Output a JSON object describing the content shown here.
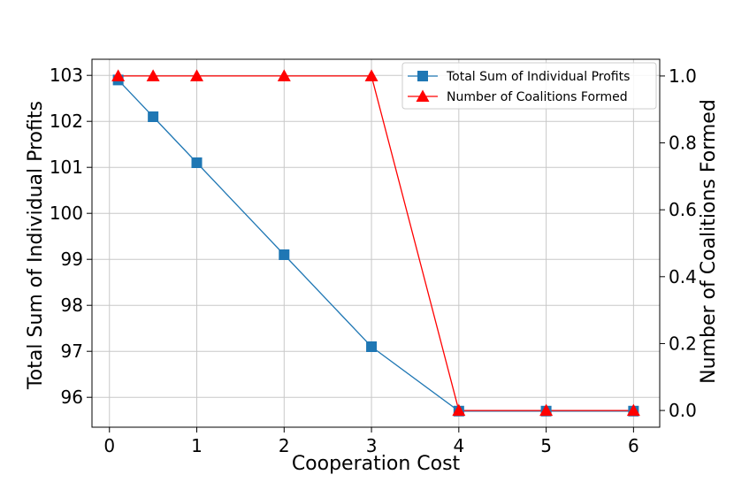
{
  "chart_data": {
    "type": "line",
    "xlabel": "Cooperation Cost",
    "ylabel_left": "Total Sum of Individual Profits",
    "ylabel_right": "Number of Coalitions Formed",
    "xlim": [
      -0.2,
      6.3
    ],
    "ylim_left": [
      95.35,
      103.35
    ],
    "ylim_right": [
      -0.05,
      1.05
    ],
    "xticks": [
      0,
      1,
      2,
      3,
      4,
      5,
      6
    ],
    "yticks_left": [
      96,
      97,
      98,
      99,
      100,
      101,
      102,
      103
    ],
    "yticks_right": [
      0.0,
      0.2,
      0.4,
      0.6,
      0.8,
      1.0
    ],
    "ytick_right_labels": [
      "0.0",
      "0.2",
      "0.4",
      "0.6",
      "0.8",
      "1.0"
    ],
    "grid": true,
    "legend_position": "top-right",
    "series": [
      {
        "name": "Total Sum of Individual Profits",
        "axis": "left",
        "color": "#1f77b4",
        "marker": "square",
        "x": [
          0.1,
          0.5,
          1,
          2,
          3,
          4,
          5,
          6
        ],
        "y": [
          102.9,
          102.1,
          101.1,
          99.1,
          97.1,
          95.7,
          95.7,
          95.7
        ]
      },
      {
        "name": "Number of Coalitions Formed",
        "axis": "right",
        "color": "#ff0000",
        "marker": "triangle",
        "x": [
          0.1,
          0.5,
          1,
          2,
          3,
          4,
          5,
          6
        ],
        "y": [
          1,
          1,
          1,
          1,
          1,
          0,
          0,
          0
        ]
      }
    ]
  }
}
